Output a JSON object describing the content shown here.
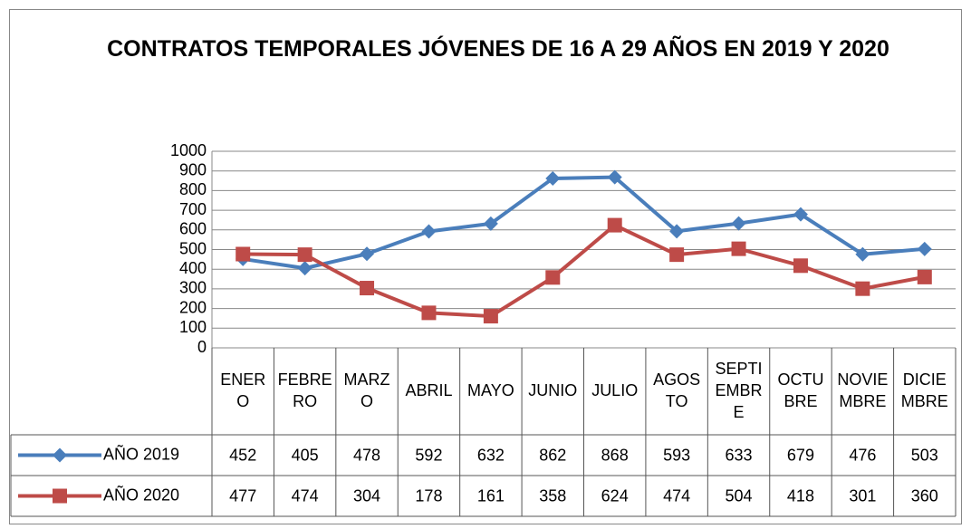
{
  "chart_data": {
    "type": "line",
    "title": "CONTRATOS TEMPORALES JÓVENES DE 16 A 29 AÑOS EN 2019 Y 2020",
    "categories": [
      "ENERO",
      "FEBRERO",
      "MARZO",
      "ABRIL",
      "MAYO",
      "JUNIO",
      "JULIO",
      "AGOSTO",
      "SEPTIEMBRE",
      "OCTUBRE",
      "NOVIEMBRE",
      "DICIEMBRE"
    ],
    "series": [
      {
        "name": "AÑO 2019",
        "color": "#4a7ebb",
        "marker": "diamond",
        "values": [
          452,
          405,
          478,
          592,
          632,
          862,
          868,
          593,
          633,
          679,
          476,
          503
        ]
      },
      {
        "name": "AÑO 2020",
        "color": "#be4b48",
        "marker": "square",
        "values": [
          477,
          474,
          304,
          178,
          161,
          358,
          624,
          474,
          504,
          418,
          301,
          360
        ]
      }
    ],
    "ylim": [
      0,
      1000
    ],
    "yticks": [
      0,
      100,
      200,
      300,
      400,
      500,
      600,
      700,
      800,
      900,
      1000
    ],
    "grid": true
  }
}
